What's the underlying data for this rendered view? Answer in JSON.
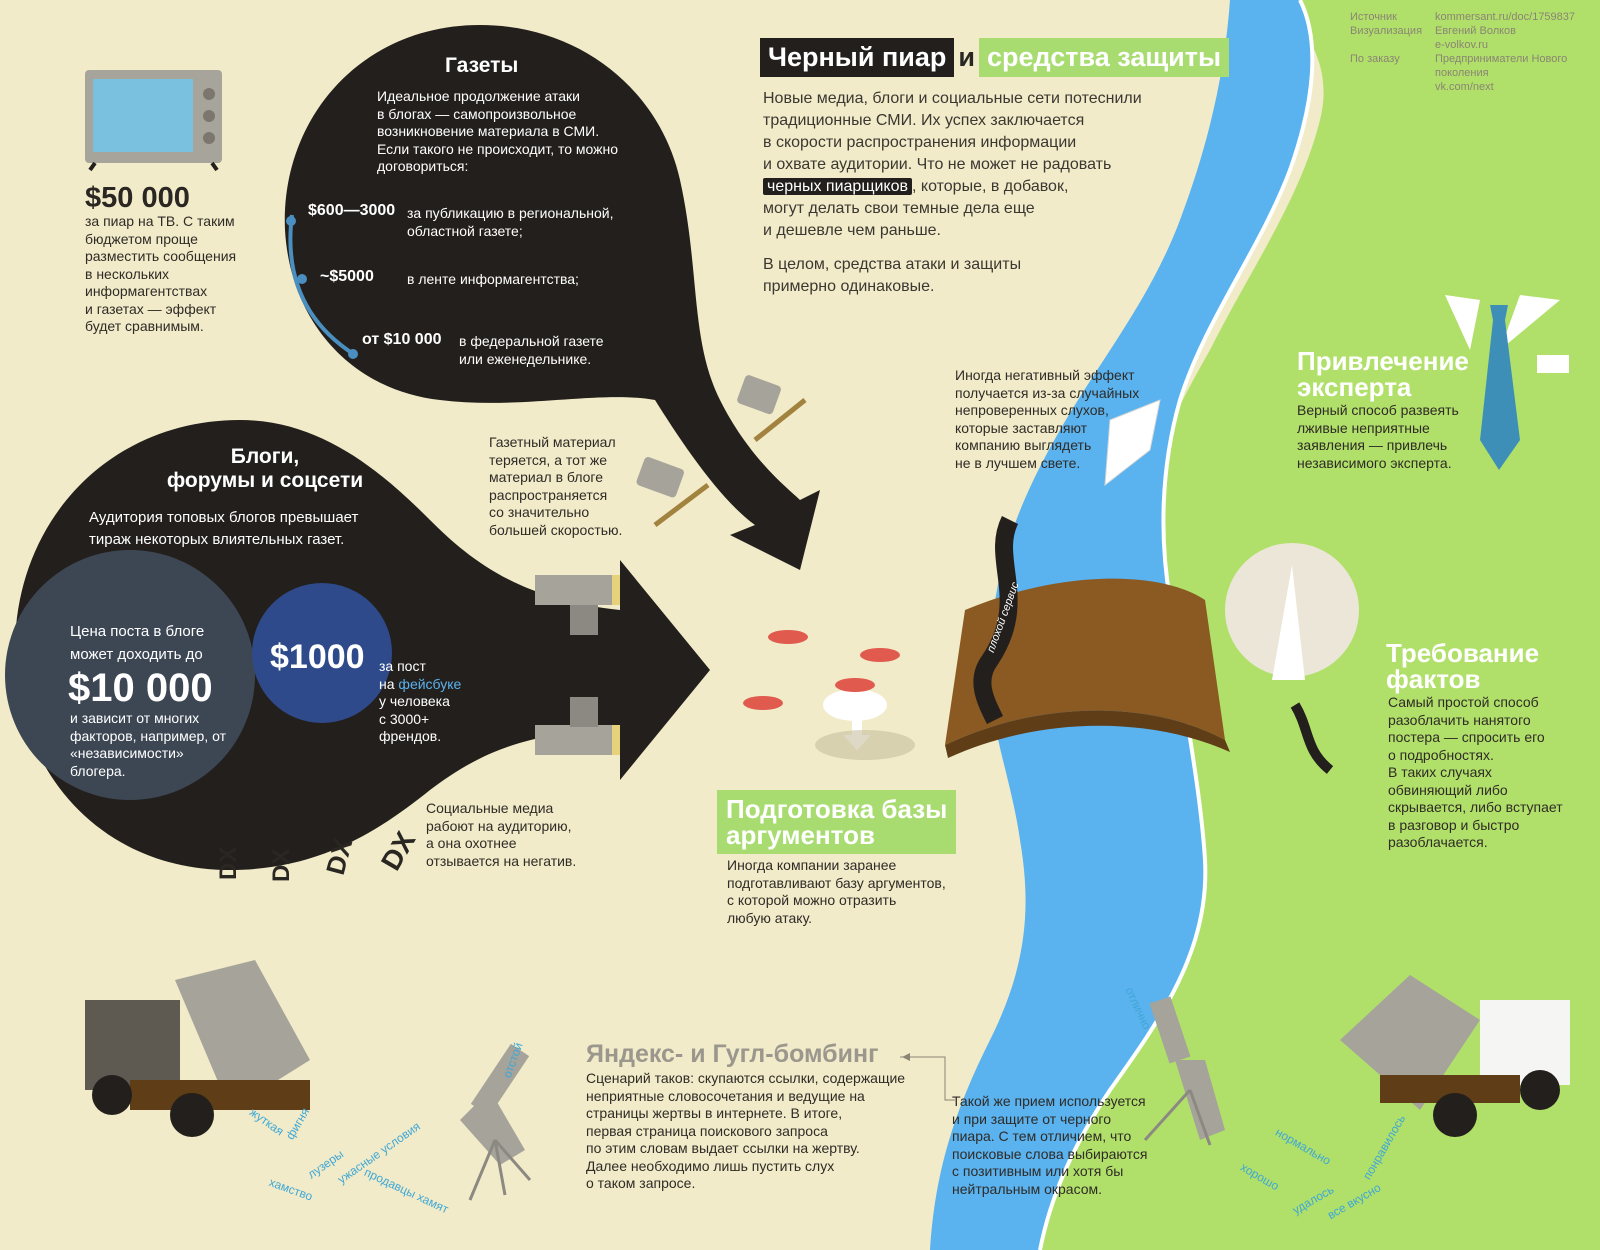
{
  "credits": {
    "source_label": "Источник",
    "source_value": "kommersant.ru/doc/1759837",
    "viz_label": "Визуализация",
    "viz_value1": "Евгений Волков",
    "viz_value2": "e-volkov.ru",
    "order_label": "По заказу",
    "order_value1": "Предприниматели Нового",
    "order_value2": "поколения",
    "order_value3": "vk.com/next"
  },
  "header": {
    "title_dark": "Черный пиар",
    "title_and": "и",
    "title_green": "средства защиты",
    "intro_lines": [
      "Новые медиа, блоги и социальные сети потеснили",
      "традиционные СМИ. Их успех заключается",
      "в скорости распространения информации",
      "и охвате аудитории. Что не может не радовать"
    ],
    "intro_highlight": "черных пиарщиков",
    "intro_after": ", которые, в добавок,",
    "intro_lines2": [
      "могут делать свои темные дела еще",
      "и дешевле чем раньше."
    ],
    "outro_lines": [
      "В целом, средства атаки и защиты",
      "примерно одинаковые."
    ]
  },
  "tv": {
    "price": "$50 000",
    "text": [
      "за пиар на ТВ. С таким",
      "бюджетом проще",
      "разместить сообщения",
      "в нескольких",
      "информагентствах",
      "и газетах — эффект",
      "будет сравнимым."
    ]
  },
  "newspapers": {
    "title": "Газеты",
    "text": [
      "Идеальное продолжение атаки",
      "в блогах — самопроизвольное",
      "возникновение материала в СМИ.",
      "Если такого не происходит, то можно",
      "договориться:"
    ],
    "prices": [
      {
        "price": "$600—3000",
        "desc": [
          "за публикацию в региональной,",
          "областной газете;"
        ]
      },
      {
        "price": "~$5000",
        "desc": [
          "в ленте информагентства;"
        ]
      },
      {
        "price": "от $10 000",
        "desc": [
          "в федеральной газете",
          "или еженедельнике."
        ]
      }
    ],
    "side_note": [
      "Газетный материал",
      "теряется, а тот же",
      "материал в блоге",
      "распространяется",
      "со значительно",
      "большей скоростью."
    ]
  },
  "blogs": {
    "title1": "Блоги,",
    "title2": "форумы и соцсети",
    "text": [
      "Аудитория топовых блогов превышает",
      "тираж некоторых влиятельных газет."
    ],
    "post_price_intro": [
      "Цена поста в блоге",
      "может доходить до"
    ],
    "post_price": "$10 000",
    "post_price_text": [
      "и зависит от многих",
      "факторов, например, от",
      "«независимости»",
      "блогера."
    ],
    "fb_price": "$1000",
    "fb_text_1": "за пост",
    "fb_text_2a": "на ",
    "fb_text_2b": "фейсбуке",
    "fb_text_3": "у человека",
    "fb_text_4": "с 3000+",
    "fb_text_5": "френдов.",
    "social_note": [
      "Социальные медиа",
      "рабоют на аудиторию,",
      "а она охотнее",
      "отзывается на негатив."
    ],
    "faces": [
      "DX",
      "DX",
      "DX",
      "DX"
    ]
  },
  "rumors": {
    "text": [
      "Иногда негативный эффект",
      "получается из-за случайных",
      "непроверенных слухов,",
      "которые заставляют",
      "компанию выглядеть",
      "не в лучшем свете."
    ]
  },
  "bridge": {
    "ribbon": "плохой сервис"
  },
  "arguments": {
    "title1": "Подготовка базы",
    "title2": "аргументов",
    "text": [
      "Иногда компании заранее",
      "подготавливают базу аргументов,",
      "с которой можно отразить",
      "любую атаку."
    ]
  },
  "expert": {
    "title1": "Привлечение",
    "title2": "эксперта",
    "text": [
      "Верный способ развеять",
      "лживые неприятные",
      "заявления — привлечь",
      "независимого эксперта."
    ]
  },
  "facts": {
    "title1": "Требование",
    "title2": "фактов",
    "text": [
      "Самый простой способ",
      "разоблачить нанятого",
      "постера — спросить его",
      "о подробностях.",
      "В таких случаях",
      "обвиняющий либо",
      "скрывается, либо вступает",
      "в разговор и быстро",
      "разоблачается."
    ]
  },
  "bombing": {
    "title": "Яндекс- и Гугл-бомбинг",
    "text": [
      "Сценарий таков: скупаются ссылки, содержащие",
      "неприятные словосочетания и ведущие на",
      "страницы жертвы в интернете. В итоге,",
      "первая страница поискового запроса",
      "по этим словам выдает ссылки на жертву.",
      "Далее необходимо лишь пустить слух",
      "о таком запросе."
    ],
    "defense_text": [
      "Такой же прием используется",
      "и при защите от черного",
      "пиара. С тем отличием, что",
      "поисковые слова выбираются",
      "с позитивным или хотя бы",
      "нейтральным окрасом."
    ],
    "neg_words": [
      "отстой",
      "жуткая",
      "фигня",
      "лузеры",
      "ужасные условия",
      "хамство",
      "продавцы хамят"
    ],
    "pos_words": [
      "отлично",
      "нормально",
      "хорошо",
      "удалось",
      "понравилось",
      "все вкусно"
    ]
  },
  "colors": {
    "background": "#f1ebc9",
    "dark": "#231f1c",
    "green": "#a8dc70",
    "river": "#5ab2ef",
    "grass": "#b1e06a",
    "link_blue": "#3fa7d6"
  }
}
